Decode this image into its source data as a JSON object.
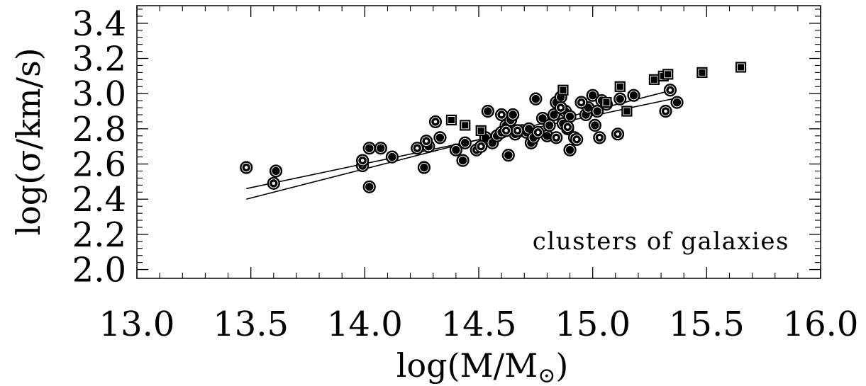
{
  "chart_data": {
    "type": "scatter",
    "title": "",
    "xlabel": "log(M/M",
    "xlabel_sub": "⊙",
    "xlabel_close": ")",
    "ylabel": "log(σ/km/s)",
    "xlim": [
      13.0,
      16.0
    ],
    "ylim": [
      1.95,
      3.5
    ],
    "x_ticks": [
      13.0,
      13.5,
      14.0,
      14.5,
      15.0,
      15.5,
      16.0
    ],
    "x_tick_labels": [
      "13.0",
      "13.5",
      "14.0",
      "14.5",
      "15.0",
      "15.5",
      "16.0"
    ],
    "y_ticks": [
      2.0,
      2.2,
      2.4,
      2.6,
      2.8,
      3.0,
      3.2,
      3.4
    ],
    "y_tick_labels": [
      "2.0",
      "2.2",
      "2.4",
      "2.6",
      "2.8",
      "3.0",
      "3.2",
      "3.4"
    ],
    "annotation": "clusters of galaxies",
    "grid": false,
    "series": [
      {
        "marker": "filled-circle",
        "points": [
          [
            13.61,
            2.56
          ],
          [
            14.02,
            2.47
          ],
          [
            14.02,
            2.69
          ],
          [
            14.07,
            2.69
          ],
          [
            14.12,
            2.64
          ],
          [
            14.26,
            2.58
          ],
          [
            14.28,
            2.7
          ],
          [
            14.33,
            2.75
          ],
          [
            14.4,
            2.68
          ],
          [
            14.43,
            2.62
          ],
          [
            14.44,
            2.72
          ],
          [
            14.53,
            2.75
          ],
          [
            14.54,
            2.9
          ],
          [
            14.56,
            2.72
          ],
          [
            14.58,
            2.76
          ],
          [
            14.6,
            2.78
          ],
          [
            14.62,
            2.82
          ],
          [
            14.63,
            2.65
          ],
          [
            14.64,
            2.85
          ],
          [
            14.65,
            2.88
          ],
          [
            14.66,
            2.77
          ],
          [
            14.69,
            2.79
          ],
          [
            14.71,
            2.78
          ],
          [
            14.72,
            2.8
          ],
          [
            14.73,
            2.72
          ],
          [
            14.74,
            2.75
          ],
          [
            14.75,
            2.97
          ],
          [
            14.78,
            2.86
          ],
          [
            14.8,
            2.76
          ],
          [
            14.81,
            2.82
          ],
          [
            14.83,
            2.88
          ],
          [
            14.84,
            2.95
          ],
          [
            14.86,
            2.98
          ],
          [
            14.87,
            2.83
          ],
          [
            14.88,
            2.9
          ],
          [
            14.89,
            2.8
          ],
          [
            14.9,
            2.87
          ],
          [
            14.9,
            2.68
          ],
          [
            14.92,
            2.75
          ],
          [
            14.95,
            2.95
          ],
          [
            14.97,
            2.88
          ],
          [
            14.98,
            2.92
          ],
          [
            15.0,
            2.99
          ],
          [
            15.01,
            2.82
          ],
          [
            15.02,
            2.9
          ],
          [
            15.04,
            2.96
          ],
          [
            15.06,
            2.94
          ],
          [
            15.12,
            2.97
          ],
          [
            15.18,
            2.99
          ],
          [
            15.37,
            2.95
          ]
        ]
      },
      {
        "marker": "dotted-circle",
        "points": [
          [
            13.48,
            2.58
          ],
          [
            13.6,
            2.49
          ],
          [
            13.99,
            2.59
          ],
          [
            13.99,
            2.62
          ],
          [
            14.23,
            2.69
          ],
          [
            14.27,
            2.73
          ],
          [
            14.31,
            2.84
          ],
          [
            14.49,
            2.68
          ],
          [
            14.51,
            2.7
          ],
          [
            14.6,
            2.88
          ],
          [
            14.62,
            2.79
          ],
          [
            14.67,
            2.79
          ],
          [
            14.76,
            2.78
          ],
          [
            14.84,
            2.75
          ],
          [
            14.86,
            2.92
          ],
          [
            14.89,
            2.81
          ],
          [
            14.93,
            2.74
          ],
          [
            14.95,
            2.95
          ],
          [
            15.03,
            2.75
          ],
          [
            15.11,
            2.77
          ],
          [
            15.32,
            2.9
          ],
          [
            15.34,
            3.02
          ]
        ]
      },
      {
        "marker": "filled-square",
        "points": [
          [
            14.38,
            2.85
          ],
          [
            14.44,
            2.82
          ],
          [
            14.51,
            2.79
          ],
          [
            14.87,
            3.02
          ],
          [
            15.06,
            2.95
          ],
          [
            15.12,
            3.04
          ],
          [
            15.15,
            2.9
          ],
          [
            15.27,
            3.08
          ],
          [
            15.31,
            3.1
          ],
          [
            15.33,
            3.11
          ],
          [
            15.48,
            3.12
          ],
          [
            15.65,
            3.15
          ]
        ]
      }
    ],
    "fit_lines": [
      {
        "x": [
          13.48,
          15.35
        ],
        "y": [
          2.46,
          2.97
        ]
      },
      {
        "x": [
          13.48,
          15.35
        ],
        "y": [
          2.4,
          3.02
        ]
      }
    ]
  }
}
